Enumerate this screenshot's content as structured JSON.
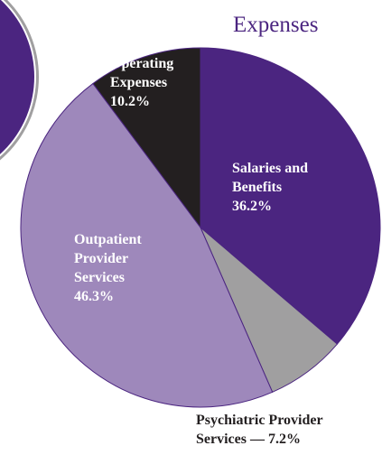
{
  "chart_data": {
    "type": "pie",
    "title": "Expenses",
    "categories": [
      "Salaries and Benefits",
      "Psychiatric Provider Services",
      "Outpatient Provider Services",
      "Operating Expenses"
    ],
    "values": [
      36.2,
      7.2,
      46.3,
      10.2
    ],
    "value_labels": [
      "36.2%",
      "— 7.2%",
      "46.3%",
      "10.2%"
    ],
    "colors": [
      "#4b2580",
      "#a09fa0",
      "#9e88bb",
      "#231f20"
    ]
  }
}
